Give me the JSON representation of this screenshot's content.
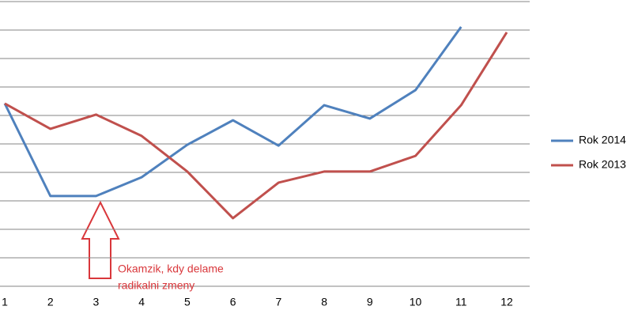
{
  "chart_data": {
    "type": "line",
    "categories": [
      "1",
      "2",
      "3",
      "4",
      "5",
      "6",
      "7",
      "8",
      "9",
      "10",
      "11",
      "12"
    ],
    "series": [
      {
        "name": "Rok 2014",
        "color": "#4f81bd",
        "values": [
          6.42,
          3.17,
          3.17,
          3.83,
          4.97,
          5.83,
          4.94,
          6.36,
          5.89,
          6.89,
          9.11,
          null
        ]
      },
      {
        "name": "Rok 2013",
        "color": "#c0504d",
        "values": [
          6.42,
          5.53,
          6.03,
          5.28,
          4.03,
          2.39,
          3.64,
          4.03,
          4.03,
          4.58,
          6.36,
          8.92
        ]
      }
    ],
    "ylim": [
      0,
      10
    ],
    "yticks": [
      0,
      1,
      2,
      3,
      4,
      5,
      6,
      7,
      8,
      9,
      10
    ],
    "grid": true,
    "legend": "right",
    "annotation_lines": [
      "Okamzik, kdy delame",
      "radikalni zmeny"
    ],
    "annotation_color": "#d9373b"
  }
}
